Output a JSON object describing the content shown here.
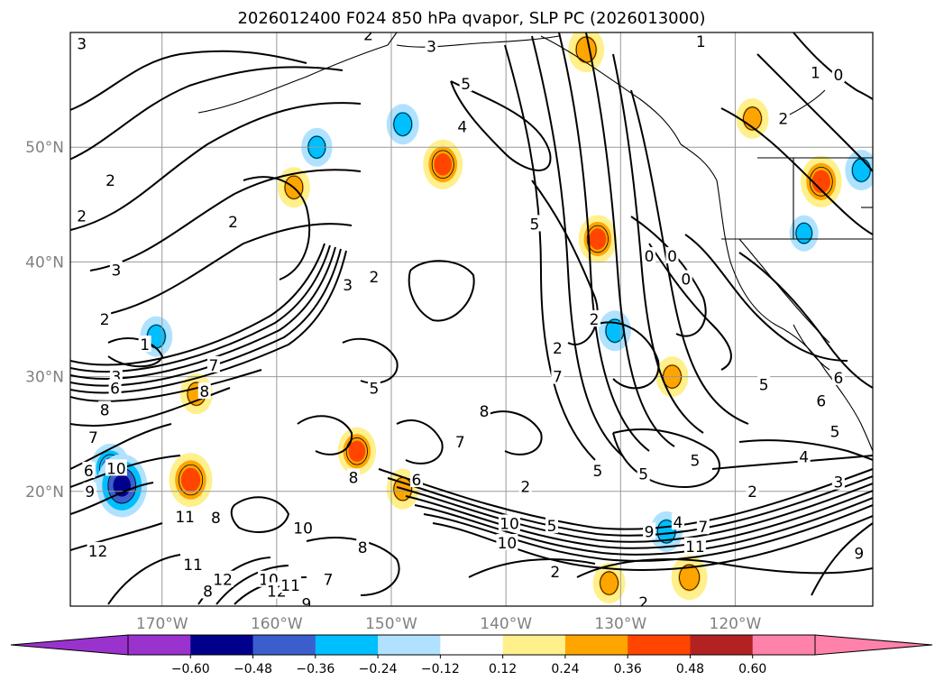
{
  "chart_data": {
    "type": "contour-map",
    "title": "2026012400 F024 850 hPa qvapor, SLP PC (2026013000)",
    "x_axis": {
      "range": [
        -178,
        -108
      ],
      "ticks": [
        {
          "value": -170,
          "label": "170°W"
        },
        {
          "value": -160,
          "label": "160°W"
        },
        {
          "value": -150,
          "label": "150°W"
        },
        {
          "value": -140,
          "label": "140°W"
        },
        {
          "value": -130,
          "label": "130°W"
        },
        {
          "value": -120,
          "label": "120°W"
        }
      ]
    },
    "y_axis": {
      "range": [
        10,
        60
      ],
      "ticks": [
        {
          "value": 20,
          "label": "20°N"
        },
        {
          "value": 30,
          "label": "30°N"
        },
        {
          "value": 40,
          "label": "40°N"
        },
        {
          "value": 50,
          "label": "50°N"
        }
      ]
    },
    "grid": true,
    "colorbar": {
      "extend": "both",
      "boundaries": [
        -0.72,
        -0.6,
        -0.48,
        -0.36,
        -0.24,
        -0.12,
        0.12,
        0.24,
        0.36,
        0.48,
        0.6,
        0.72
      ],
      "colors": [
        "#9a32cd",
        "#00008b",
        "#3a5fcd",
        "#00bfff",
        "#b0e2ff",
        "#ffffff",
        "#fff08c",
        "#ffa500",
        "#ff4500",
        "#b22222",
        "#ff82ab"
      ],
      "under_color": "#9a32cd",
      "over_color": "#ff82ab",
      "tick_labels": [
        "−0.60",
        "−0.48",
        "−0.36",
        "−0.24",
        "−0.12",
        "0.12",
        "0.24",
        "0.36",
        "0.48",
        "0.60"
      ]
    },
    "shaded_anomalies": [
      {
        "lon": -174.5,
        "lat": 22,
        "value": -0.4
      },
      {
        "lon": -173.5,
        "lat": 20.5,
        "value": -0.55
      },
      {
        "lon": -167.5,
        "lat": 21,
        "value": 0.45
      },
      {
        "lon": -170.5,
        "lat": 33.5,
        "value": -0.3
      },
      {
        "lon": -167,
        "lat": 28.5,
        "value": 0.3
      },
      {
        "lon": -153,
        "lat": 23.5,
        "value": 0.38
      },
      {
        "lon": -149,
        "lat": 20.2,
        "value": 0.3
      },
      {
        "lon": -149,
        "lat": 52,
        "value": -0.3
      },
      {
        "lon": -156.5,
        "lat": 50,
        "value": -0.28
      },
      {
        "lon": -145.5,
        "lat": 48.5,
        "value": 0.4
      },
      {
        "lon": -158.5,
        "lat": 46.5,
        "value": 0.3
      },
      {
        "lon": -133,
        "lat": 58.5,
        "value": 0.35
      },
      {
        "lon": -132,
        "lat": 42,
        "value": 0.38
      },
      {
        "lon": -130.5,
        "lat": 34,
        "value": -0.3
      },
      {
        "lon": -125.5,
        "lat": 30,
        "value": 0.3
      },
      {
        "lon": -126,
        "lat": 16.5,
        "value": -0.3
      },
      {
        "lon": -124,
        "lat": 12.5,
        "value": 0.35
      },
      {
        "lon": -131,
        "lat": 12,
        "value": 0.3
      },
      {
        "lon": -118.5,
        "lat": 52.5,
        "value": 0.3
      },
      {
        "lon": -112.5,
        "lat": 47,
        "value": 0.42
      },
      {
        "lon": -114,
        "lat": 42.5,
        "value": -0.25
      },
      {
        "lon": -109,
        "lat": 48,
        "value": -0.3
      }
    ],
    "contour_labels": [
      {
        "lon": -177,
        "lat": 59,
        "text": "3"
      },
      {
        "lon": -152,
        "lat": 59.8,
        "text": "2"
      },
      {
        "lon": -146.5,
        "lat": 58.8,
        "text": "3"
      },
      {
        "lon": -143.5,
        "lat": 55.5,
        "text": "5"
      },
      {
        "lon": -143.8,
        "lat": 51.8,
        "text": "4"
      },
      {
        "lon": -123,
        "lat": 59.2,
        "text": "1"
      },
      {
        "lon": -113,
        "lat": 56.5,
        "text": "1"
      },
      {
        "lon": -111,
        "lat": 56.3,
        "text": "0"
      },
      {
        "lon": -115.8,
        "lat": 52.5,
        "text": "2"
      },
      {
        "lon": -174.5,
        "lat": 47.1,
        "text": "2"
      },
      {
        "lon": -177,
        "lat": 44,
        "text": "2"
      },
      {
        "lon": -163.8,
        "lat": 43.5,
        "text": "2"
      },
      {
        "lon": -174,
        "lat": 39.3,
        "text": "3"
      },
      {
        "lon": -175,
        "lat": 35,
        "text": "2"
      },
      {
        "lon": -171.5,
        "lat": 32.8,
        "text": "1"
      },
      {
        "lon": -174,
        "lat": 30,
        "text": "3"
      },
      {
        "lon": -174.1,
        "lat": 29,
        "text": "6"
      },
      {
        "lon": -165.5,
        "lat": 31,
        "text": "7"
      },
      {
        "lon": -166.3,
        "lat": 28.7,
        "text": "8"
      },
      {
        "lon": -175,
        "lat": 27.1,
        "text": "8"
      },
      {
        "lon": -176,
        "lat": 24.7,
        "text": "7"
      },
      {
        "lon": -176.4,
        "lat": 21.8,
        "text": "6"
      },
      {
        "lon": -174,
        "lat": 22,
        "text": "10"
      },
      {
        "lon": -176.3,
        "lat": 20,
        "text": "9"
      },
      {
        "lon": -168,
        "lat": 17.8,
        "text": "11"
      },
      {
        "lon": -175.6,
        "lat": 14.8,
        "text": "12"
      },
      {
        "lon": -165.3,
        "lat": 17.7,
        "text": "8"
      },
      {
        "lon": -167.3,
        "lat": 13.6,
        "text": "11"
      },
      {
        "lon": -166,
        "lat": 11.3,
        "text": "8"
      },
      {
        "lon": -164.7,
        "lat": 12.3,
        "text": "12"
      },
      {
        "lon": -160.7,
        "lat": 12.3,
        "text": "10"
      },
      {
        "lon": -160,
        "lat": 11.3,
        "text": "12"
      },
      {
        "lon": -158.8,
        "lat": 11.8,
        "text": "11"
      },
      {
        "lon": -155.5,
        "lat": 12.3,
        "text": "7"
      },
      {
        "lon": -157.7,
        "lat": 16.8,
        "text": "10"
      },
      {
        "lon": -152.5,
        "lat": 15.1,
        "text": "8"
      },
      {
        "lon": -153.3,
        "lat": 21.2,
        "text": "8"
      },
      {
        "lon": -147.8,
        "lat": 21,
        "text": "6"
      },
      {
        "lon": -144,
        "lat": 24.3,
        "text": "7"
      },
      {
        "lon": -153.8,
        "lat": 38,
        "text": "3"
      },
      {
        "lon": -151.5,
        "lat": 38.7,
        "text": "2"
      },
      {
        "lon": -151.5,
        "lat": 29,
        "text": "5"
      },
      {
        "lon": -141.9,
        "lat": 27,
        "text": "8"
      },
      {
        "lon": -138.3,
        "lat": 20.4,
        "text": "2"
      },
      {
        "lon": -139.7,
        "lat": 17.2,
        "text": "10"
      },
      {
        "lon": -139.9,
        "lat": 15.5,
        "text": "10"
      },
      {
        "lon": -136,
        "lat": 17,
        "text": "5"
      },
      {
        "lon": -135.7,
        "lat": 13,
        "text": "2"
      },
      {
        "lon": -127.5,
        "lat": 16.5,
        "text": "9"
      },
      {
        "lon": -125,
        "lat": 17.3,
        "text": "4"
      },
      {
        "lon": -122.8,
        "lat": 16.9,
        "text": "7"
      },
      {
        "lon": -123.5,
        "lat": 15.2,
        "text": "11"
      },
      {
        "lon": -132,
        "lat": 21.8,
        "text": "5"
      },
      {
        "lon": -128,
        "lat": 21.5,
        "text": "5"
      },
      {
        "lon": -123.5,
        "lat": 22.7,
        "text": "5"
      },
      {
        "lon": -118.5,
        "lat": 20,
        "text": "2"
      },
      {
        "lon": -114,
        "lat": 23,
        "text": "4"
      },
      {
        "lon": -111,
        "lat": 20.8,
        "text": "3"
      },
      {
        "lon": -111.3,
        "lat": 25.2,
        "text": "5"
      },
      {
        "lon": -112.5,
        "lat": 27.9,
        "text": "6"
      },
      {
        "lon": -111,
        "lat": 29.9,
        "text": "6"
      },
      {
        "lon": -117.5,
        "lat": 29.3,
        "text": "5"
      },
      {
        "lon": -109.2,
        "lat": 14.6,
        "text": "9"
      },
      {
        "lon": -128,
        "lat": 10.3,
        "text": "2"
      },
      {
        "lon": -135.5,
        "lat": 32.5,
        "text": "2"
      },
      {
        "lon": -132.3,
        "lat": 35,
        "text": "2"
      },
      {
        "lon": -135.5,
        "lat": 30,
        "text": "7"
      },
      {
        "lon": -127.5,
        "lat": 40.5,
        "text": "0"
      },
      {
        "lon": -125.5,
        "lat": 40.5,
        "text": "0"
      },
      {
        "lon": -124.3,
        "lat": 38.5,
        "text": "0"
      },
      {
        "lon": -137.5,
        "lat": 43.3,
        "text": "5"
      },
      {
        "lon": -157.4,
        "lat": 10.2,
        "text": "9"
      }
    ]
  },
  "map_lines": {
    "isobars": [
      "M50,130 C110,120 140,70 200,60 C260,52 300,60 340,70",
      "M70,180 C120,160 150,120 210,95 C270,75 320,70 380,78",
      "M78,255 C140,240 170,200 230,160 C290,125 340,110 400,115",
      "M100,300 C160,290 200,250 260,215 C310,190 360,185 400,190",
      "M110,350 C170,340 220,300 270,270 C320,250 360,245 390,250",
      "M78,400 C140,415 230,390 300,350 C330,330 350,300 360,270",
      "M78,408 C140,422 230,398 305,358 C338,336 356,305 366,272",
      "M78,416 C140,430 230,405 310,366 C344,343 362,310 372,274",
      "M78,424 C140,437 232,413 315,374 C350,350 368,315 378,276",
      "M78,432 C140,445 235,420 320,382 C356,357 374,320 384,278",
      "M78,440 C130,455 220,432 290,410",
      "M78,470 C140,480 200,450 255,430",
      "M78,520 C120,500 150,480 190,470",
      "M78,540 C120,525 150,510 200,505",
      "M78,570 C110,560 140,540 170,535",
      "M78,610 C110,600 150,590 180,580",
      "M120,670 C140,640 170,620 200,615",
      "M220,670 C240,640 270,620 300,618",
      "M240,670 C260,645 290,628 320,627",
      "M260,670 C280,650 310,640 340,640",
      "M420,520 C480,540 560,570 660,585 C760,595 860,560 968,520",
      "M430,530 C490,548 565,578 662,592 C762,602 862,568 968,528",
      "M440,540 C500,556 570,586 664,599 C764,609 864,576 968,536",
      "M450,550 C510,564 575,594 666,606 C766,616 866,584 968,544",
      "M460,560 C520,572 580,602 668,613 C768,623 868,592 968,552",
      "M470,570 C530,580 585,610 670,620 C770,630 870,600 968,560",
      "M480,580 C540,590 590,625 672,630 C772,640 872,612 968,572",
      "M560,50 C580,120 600,200 600,300 C600,400 620,470 660,510",
      "M590,40 C610,120 625,200 630,300 C635,400 650,470 690,505",
      "M620,36 C640,120 650,200 655,300 C660,400 680,470 720,500",
      "M650,36 C668,120 678,200 685,300 C692,400 708,470 748,495",
      "M680,60 C695,130 705,210 712,300 C720,390 735,450 780,480",
      "M700,100 C720,170 730,240 745,320 C760,400 780,450 830,470",
      "M500,90 C540,110 600,130 610,170 C615,200 580,190 560,170 C540,150 510,120 500,90",
      "M455,300 C470,285 510,285 525,305 C530,330 505,360 480,355 C460,345 450,320 455,300",
      "M270,200 C300,190 330,200 340,230 C350,270 335,300 310,310",
      "M120,380 C140,370 170,375 180,395 C175,410 140,410 120,395",
      "M590,200 C620,240 640,280 660,330 C670,360 650,390 630,380",
      "M660,360 C690,350 720,370 730,400 C735,430 700,440 680,420",
      "M700,240 C730,260 760,290 780,330 C790,360 770,380 750,370",
      "M720,270 C740,300 760,330 790,360 C810,380 820,400 800,410",
      "M760,260 C790,280 810,320 840,350 C870,380 900,400 940,400",
      "M820,280 C850,300 880,330 910,370 C930,400 950,420 968,430",
      "M800,120 C840,140 870,170 900,200 C930,230 950,250 968,260",
      "M840,60 C870,90 900,120 930,150 C950,170 960,180 968,190",
      "M880,36 C900,60 920,80 950,100 C960,105 965,108 968,110",
      "M680,480 C720,470 760,480 790,500 C810,520 790,540 760,540 C720,540 690,520 680,480",
      "M820,490 C860,485 900,490 940,500 C955,505 963,508 968,510",
      "M790,520 C840,515 890,512 968,505",
      "M260,560 C280,545 310,550 320,570 C315,590 285,595 265,585 C255,575 255,565 260,560",
      "M440,470 C460,460 480,470 490,490 C495,510 470,520 450,510",
      "M540,460 C560,450 590,460 600,480 C605,500 580,510 560,500",
      "M640,640 C680,620 740,615 800,625 C860,635 920,640 968,630",
      "M520,640 C560,620 610,615 660,625",
      "M968,580 C940,600 920,620 900,660",
      "M340,600 C380,590 420,600 440,620 C450,640 430,660 400,660",
      "M330,470 C350,455 380,460 390,480 C392,500 370,510 350,500",
      "M380,380 C400,370 430,378 440,400 C445,420 420,430 400,422"
    ],
    "coastlines": [
      "M220,125 C260,118 300,100 340,85 C370,72 400,60 430,50 L440,36",
      "M440,50 C470,55 500,50 530,48 C560,46 590,45 620,40",
      "M600,40 C640,60 680,90 710,110 C730,125 745,140 755,160",
      "M755,160 C770,170 785,180 795,200 C800,230 802,260 810,290",
      "M810,290 C820,320 835,345 860,360 C880,370 900,385 915,410",
      "M915,410 C930,430 945,450 955,470 C962,485 966,495 968,500",
      "M840,175 L968,175",
      "M880,175 L880,265",
      "M800,265 L968,265",
      "M820,265 C850,300 880,340 920,380",
      "M955,230 L968,230",
      "M880,360 C890,380 905,400 920,410",
      "M870,130 C890,120 905,110 915,100"
    ]
  }
}
